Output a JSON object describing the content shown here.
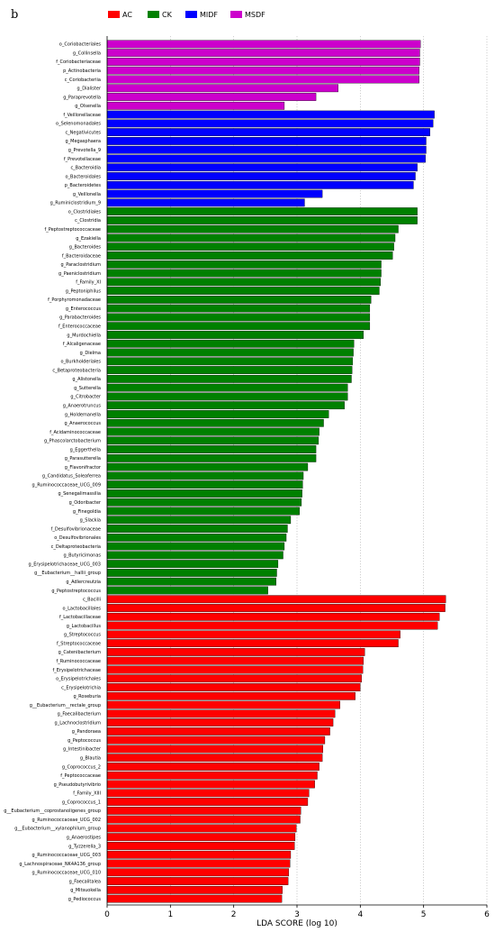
{
  "panel_letter": "b",
  "chart_data": {
    "type": "bar",
    "orientation": "horizontal",
    "xlabel": "LDA SCORE (log 10)",
    "xlim": [
      0,
      6
    ],
    "xticks": [
      0,
      1,
      2,
      3,
      4,
      5,
      6
    ],
    "grid": "vertical dotted",
    "legend": {
      "placement": "top",
      "entries": [
        {
          "name": "AC",
          "color": "#ff0000"
        },
        {
          "name": "CK",
          "color": "#008000"
        },
        {
          "name": "MIDF",
          "color": "#0000ff"
        },
        {
          "name": "MSDF",
          "color": "#cc00cc"
        }
      ]
    },
    "bars": [
      {
        "label": "o_Coriobacteriales",
        "value": 4.95,
        "group": "MSDF"
      },
      {
        "label": "g_Collinsella",
        "value": 4.94,
        "group": "MSDF"
      },
      {
        "label": "f_Coriobacteriaceae",
        "value": 4.94,
        "group": "MSDF"
      },
      {
        "label": "p_Actinobacteria",
        "value": 4.93,
        "group": "MSDF"
      },
      {
        "label": "c_Coriobacteriia",
        "value": 4.93,
        "group": "MSDF"
      },
      {
        "label": "g_Dialister",
        "value": 3.65,
        "group": "MSDF"
      },
      {
        "label": "g_Paraprevotella",
        "value": 3.3,
        "group": "MSDF"
      },
      {
        "label": "g_Olsenella",
        "value": 2.8,
        "group": "MSDF"
      },
      {
        "label": "f_Veillonellaceae",
        "value": 5.17,
        "group": "MIDF"
      },
      {
        "label": "o_Selenomonadales",
        "value": 5.15,
        "group": "MIDF"
      },
      {
        "label": "c_Negativicutes",
        "value": 5.1,
        "group": "MIDF"
      },
      {
        "label": "g_Megasphaera",
        "value": 5.04,
        "group": "MIDF"
      },
      {
        "label": "g_Prevotella_9",
        "value": 5.04,
        "group": "MIDF"
      },
      {
        "label": "f_Prevotellaceae",
        "value": 5.03,
        "group": "MIDF"
      },
      {
        "label": "c_Bacteroidia",
        "value": 4.9,
        "group": "MIDF"
      },
      {
        "label": "o_Bacteroidales",
        "value": 4.87,
        "group": "MIDF"
      },
      {
        "label": "p_Bacteroidetes",
        "value": 4.84,
        "group": "MIDF"
      },
      {
        "label": "g_Veillonella",
        "value": 3.4,
        "group": "MIDF"
      },
      {
        "label": "g_Ruminiclostridium_9",
        "value": 3.12,
        "group": "MIDF"
      },
      {
        "label": "o_Clostridiales",
        "value": 4.9,
        "group": "CK"
      },
      {
        "label": "c_Clostridia",
        "value": 4.9,
        "group": "CK"
      },
      {
        "label": "f_Peptostreptococcaceae",
        "value": 4.6,
        "group": "CK"
      },
      {
        "label": "g_Ezakiella",
        "value": 4.55,
        "group": "CK"
      },
      {
        "label": "g_Bacteroides",
        "value": 4.53,
        "group": "CK"
      },
      {
        "label": "f_Bacteroidaceae",
        "value": 4.51,
        "group": "CK"
      },
      {
        "label": "g_Paraclostridium",
        "value": 4.33,
        "group": "CK"
      },
      {
        "label": "g_Paeniclostridium",
        "value": 4.33,
        "group": "CK"
      },
      {
        "label": "f_Family_XI",
        "value": 4.32,
        "group": "CK"
      },
      {
        "label": "g_Peptoniphilus",
        "value": 4.3,
        "group": "CK"
      },
      {
        "label": "f_Porphyromonadaceae",
        "value": 4.17,
        "group": "CK"
      },
      {
        "label": "g_Enterococcus",
        "value": 4.15,
        "group": "CK"
      },
      {
        "label": "g_Parabacteroides",
        "value": 4.15,
        "group": "CK"
      },
      {
        "label": "f_Enterococcaceae",
        "value": 4.15,
        "group": "CK"
      },
      {
        "label": "g_Murdochiella",
        "value": 4.05,
        "group": "CK"
      },
      {
        "label": "f_Alcaligenaceae",
        "value": 3.9,
        "group": "CK"
      },
      {
        "label": "g_Dielma",
        "value": 3.89,
        "group": "CK"
      },
      {
        "label": "o_Burkholderiales",
        "value": 3.88,
        "group": "CK"
      },
      {
        "label": "c_Betaproteobacteria",
        "value": 3.87,
        "group": "CK"
      },
      {
        "label": "g_Alistonella",
        "value": 3.86,
        "group": "CK"
      },
      {
        "label": "g_Sutterella",
        "value": 3.8,
        "group": "CK"
      },
      {
        "label": "g_Citrobacter",
        "value": 3.8,
        "group": "CK"
      },
      {
        "label": "g_Anaerotruncus",
        "value": 3.75,
        "group": "CK"
      },
      {
        "label": "g_Holdemanella",
        "value": 3.5,
        "group": "CK"
      },
      {
        "label": "g_Anaerococcus",
        "value": 3.42,
        "group": "CK"
      },
      {
        "label": "f_Acidaminococcaceae",
        "value": 3.35,
        "group": "CK"
      },
      {
        "label": "g_Phascolarctobacterium",
        "value": 3.34,
        "group": "CK"
      },
      {
        "label": "g_Eggerthella",
        "value": 3.3,
        "group": "CK"
      },
      {
        "label": "g_Parasutterella",
        "value": 3.3,
        "group": "CK"
      },
      {
        "label": "g_Flavonifractor",
        "value": 3.17,
        "group": "CK"
      },
      {
        "label": "g_Candidatus_Soleaferrea",
        "value": 3.1,
        "group": "CK"
      },
      {
        "label": "g_Ruminococcaceae_UCG_009",
        "value": 3.09,
        "group": "CK"
      },
      {
        "label": "g_Senegalimassilia",
        "value": 3.08,
        "group": "CK"
      },
      {
        "label": "g_Odoribacter",
        "value": 3.07,
        "group": "CK"
      },
      {
        "label": "g_Finegoldia",
        "value": 3.04,
        "group": "CK"
      },
      {
        "label": "g_Slackia",
        "value": 2.9,
        "group": "CK"
      },
      {
        "label": "f_Desulfovibrionaceae",
        "value": 2.85,
        "group": "CK"
      },
      {
        "label": "o_Desulfovibrionales",
        "value": 2.83,
        "group": "CK"
      },
      {
        "label": "c_Deltaproteobacteria",
        "value": 2.8,
        "group": "CK"
      },
      {
        "label": "g_Butyricimonas",
        "value": 2.78,
        "group": "CK"
      },
      {
        "label": "g_Erysipelotrichaceae_UCG_003",
        "value": 2.7,
        "group": "CK"
      },
      {
        "label": "g__Eubacterium__hallii_group",
        "value": 2.68,
        "group": "CK"
      },
      {
        "label": "g_Adlercreutzia",
        "value": 2.67,
        "group": "CK"
      },
      {
        "label": "g_Peptostreptococcus",
        "value": 2.54,
        "group": "CK"
      },
      {
        "label": "c_Bacilli",
        "value": 5.35,
        "group": "AC"
      },
      {
        "label": "o_Lactobacillales",
        "value": 5.34,
        "group": "AC"
      },
      {
        "label": "f_Lactobacillaceae",
        "value": 5.25,
        "group": "AC"
      },
      {
        "label": "g_Lactobacillus",
        "value": 5.22,
        "group": "AC"
      },
      {
        "label": "g_Streptococcus",
        "value": 4.63,
        "group": "AC"
      },
      {
        "label": "f_Streptococcaceae",
        "value": 4.6,
        "group": "AC"
      },
      {
        "label": "g_Catenibacterium",
        "value": 4.07,
        "group": "AC"
      },
      {
        "label": "f_Ruminococcaceae",
        "value": 4.05,
        "group": "AC"
      },
      {
        "label": "f_Erysipelotrichaceae",
        "value": 4.04,
        "group": "AC"
      },
      {
        "label": "o_Erysipelotrichales",
        "value": 4.02,
        "group": "AC"
      },
      {
        "label": "c_Erysipelotrichia",
        "value": 4.0,
        "group": "AC"
      },
      {
        "label": "g_Roseburia",
        "value": 3.92,
        "group": "AC"
      },
      {
        "label": "g__Eubacterium__rectale_group",
        "value": 3.68,
        "group": "AC"
      },
      {
        "label": "g_Faecalibacterium",
        "value": 3.6,
        "group": "AC"
      },
      {
        "label": "g_Lachnoclostridium",
        "value": 3.57,
        "group": "AC"
      },
      {
        "label": "g_Pandoraea",
        "value": 3.52,
        "group": "AC"
      },
      {
        "label": "g_Peptococcus",
        "value": 3.44,
        "group": "AC"
      },
      {
        "label": "g_Intestinibacter",
        "value": 3.41,
        "group": "AC"
      },
      {
        "label": "g_Blautia",
        "value": 3.4,
        "group": "AC"
      },
      {
        "label": "g_Coprococcus_2",
        "value": 3.35,
        "group": "AC"
      },
      {
        "label": "f_Peptococcaceae",
        "value": 3.32,
        "group": "AC"
      },
      {
        "label": "g_Pseudobutyrivibrio",
        "value": 3.28,
        "group": "AC"
      },
      {
        "label": "f_Family_XIII",
        "value": 3.19,
        "group": "AC"
      },
      {
        "label": "g_Coprococcus_1",
        "value": 3.17,
        "group": "AC"
      },
      {
        "label": "g__Eubacterium__coprostanoligenes_group",
        "value": 3.06,
        "group": "AC"
      },
      {
        "label": "g_Ruminococcaceae_UCG_002",
        "value": 3.05,
        "group": "AC"
      },
      {
        "label": "g__Eubacterium__xylanophilum_group",
        "value": 2.99,
        "group": "AC"
      },
      {
        "label": "g_Anaerostipes",
        "value": 2.97,
        "group": "AC"
      },
      {
        "label": "g_Tyzzerella_3",
        "value": 2.96,
        "group": "AC"
      },
      {
        "label": "g_Ruminococcaceae_UCG_003",
        "value": 2.9,
        "group": "AC"
      },
      {
        "label": "g_Lachnospiraceae_NK4A136_group",
        "value": 2.89,
        "group": "AC"
      },
      {
        "label": "g_Ruminococcaceae_UCG_010",
        "value": 2.87,
        "group": "AC"
      },
      {
        "label": "g_Faecalitalea",
        "value": 2.86,
        "group": "AC"
      },
      {
        "label": "g_Mitsuokella",
        "value": 2.77,
        "group": "AC"
      },
      {
        "label": "g_Pediococcus",
        "value": 2.76,
        "group": "AC"
      }
    ]
  }
}
